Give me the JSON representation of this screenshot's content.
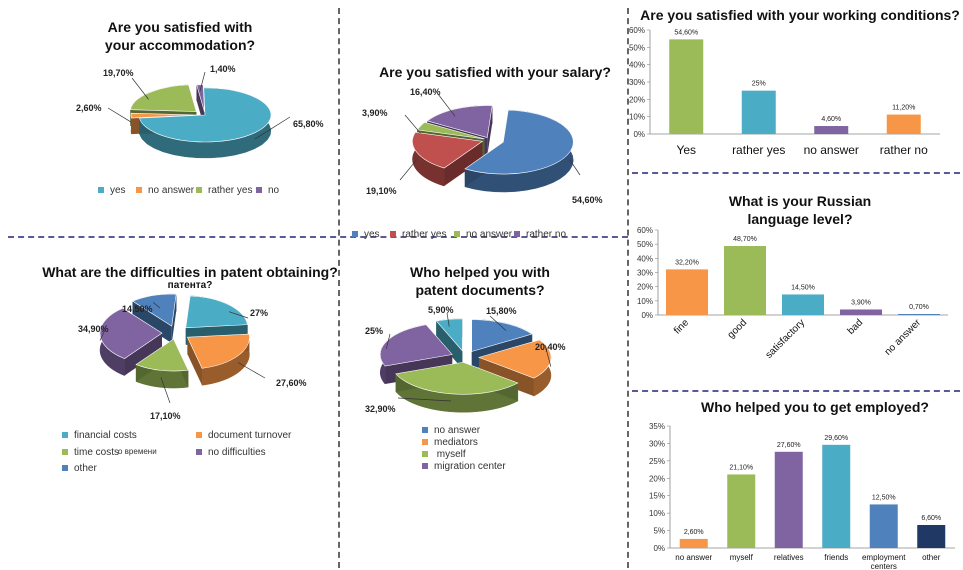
{
  "chart_data": [
    {
      "id": "accommodation",
      "type": "pie",
      "title": "Are you satisfied with your accommodation?",
      "slices": [
        {
          "name": "yes",
          "value": 65.8,
          "label": "65,80%",
          "color": "#4bacc6"
        },
        {
          "name": "no answer",
          "value": 2.6,
          "label": "2,60%",
          "color": "#f79646"
        },
        {
          "name": "rather yes",
          "value": 19.7,
          "label": "19,70%",
          "color": "#9bbb59"
        },
        {
          "name": "no",
          "value": 1.4,
          "label": "1,40%",
          "color": "#8064a2"
        }
      ],
      "legend": "bottom"
    },
    {
      "id": "salary",
      "type": "pie",
      "title": "Are you satisfied with your salary?",
      "slices": [
        {
          "name": "yes",
          "value": 54.6,
          "label": "54,60%",
          "color": "#4f81bd"
        },
        {
          "name": "rather yes",
          "value": 19.1,
          "label": "19,10%",
          "color": "#c0504d"
        },
        {
          "name": "no answer",
          "value": 3.9,
          "label": "3,90%",
          "color": "#9bbb59"
        },
        {
          "name": "rather no",
          "value": 16.4,
          "label": "16,40%",
          "color": "#8064a2"
        }
      ],
      "legend": "bottom"
    },
    {
      "id": "working_conditions",
      "type": "bar",
      "title": "Are you satisfied with your working conditions?",
      "categories": [
        "Yes",
        "rather yes",
        "no answer",
        "rather no"
      ],
      "values": [
        54.6,
        25,
        4.6,
        11.2
      ],
      "value_labels": [
        "54,60%",
        "25%",
        "4,60%",
        "11,20%"
      ],
      "colors": [
        "#9bbb59",
        "#4bacc6",
        "#8064a2",
        "#f79646"
      ],
      "yticks": [
        "0%",
        "10%",
        "20%",
        "30%",
        "40%",
        "50%",
        "60%"
      ],
      "ylim": [
        0,
        60
      ]
    },
    {
      "id": "patent_difficulties",
      "type": "pie",
      "title": "What are the difficulties in patent obtaining?",
      "subtitle": "патента?",
      "slices": [
        {
          "name": "financial costs",
          "value": 27,
          "label": "27%",
          "color": "#4bacc6"
        },
        {
          "name": "document turnover",
          "value": 27.6,
          "label": "27,60%",
          "color": "#f79646"
        },
        {
          "name": "time costs",
          "value": 17.1,
          "label": "17,10%",
          "color": "#9bbb59"
        },
        {
          "name": "no difficulties",
          "value": 34.9,
          "label": "34,90%",
          "color": "#8064a2"
        },
        {
          "name": "other",
          "value": 14.5,
          "label": "14,50%",
          "color": "#4f81bd"
        }
      ],
      "legend_extra": "о времени",
      "legend": "bottom"
    },
    {
      "id": "patent_help",
      "type": "pie",
      "title": "Who helped you with patent documents?",
      "slices": [
        {
          "name": "no answer",
          "value": 15.8,
          "label": "15,80%",
          "color": "#4f81bd"
        },
        {
          "name": "mediators",
          "value": 20.4,
          "label": "20,40%",
          "color": "#f79646"
        },
        {
          "name": "myself",
          "value": 32.9,
          "label": "32,90%",
          "color": "#9bbb59"
        },
        {
          "name": "migration center",
          "value": 25,
          "label": "25%",
          "color": "#8064a2"
        },
        {
          "name": "",
          "value": 5.9,
          "label": "5,90%",
          "color": "#4bacc6"
        }
      ],
      "legend": "bottom"
    },
    {
      "id": "russian_level",
      "type": "bar",
      "title": "What is your Russian language level?",
      "categories": [
        "fine",
        "good",
        "satisfactory",
        "bad",
        "no answer"
      ],
      "values": [
        32.2,
        48.7,
        14.5,
        3.9,
        0.7
      ],
      "value_labels": [
        "32,20%",
        "48,70%",
        "14,50%",
        "3,90%",
        "0,70%"
      ],
      "colors": [
        "#f79646",
        "#9bbb59",
        "#4bacc6",
        "#8064a2",
        "#4f81bd"
      ],
      "yticks": [
        "0%",
        "10%",
        "20%",
        "30%",
        "40%",
        "50%",
        "60%"
      ],
      "ylim": [
        0,
        60
      ]
    },
    {
      "id": "employment_help",
      "type": "bar",
      "title": "Who helped you to get employed?",
      "categories": [
        "no answer",
        "myself",
        "relatives",
        "friends",
        "employment centers",
        "other"
      ],
      "category_labels": [
        [
          "no answer"
        ],
        [
          "myself"
        ],
        [
          "relatives"
        ],
        [
          "friends"
        ],
        [
          "employment",
          "centers"
        ],
        [
          "other"
        ]
      ],
      "values": [
        2.6,
        21.1,
        27.6,
        29.6,
        12.5,
        6.6
      ],
      "value_labels": [
        "2,60%",
        "21,10%",
        "27,60%",
        "29,60%",
        "12,50%",
        "6,60%"
      ],
      "colors": [
        "#f79646",
        "#9bbb59",
        "#8064a2",
        "#4bacc6",
        "#4f81bd",
        "#1f3864"
      ],
      "yticks": [
        "0%",
        "5%",
        "10%",
        "15%",
        "20%",
        "25%",
        "30%",
        "35%"
      ],
      "ylim": [
        0,
        35
      ]
    }
  ],
  "titles": {
    "accommodation_1": "Are you satisfied with",
    "accommodation_2": "your accommodation?",
    "salary": "Are you satisfied with your salary?",
    "working": "Are you satisfied with your working conditions?",
    "patent_diff": "What are the difficulties in patent obtaining?",
    "patent_diff_sub": "патента?",
    "patent_help_1": "Who helped you with",
    "patent_help_2": "patent documents?",
    "russian_1": "What is your Russian",
    "russian_2": "language level?",
    "employed": "Who helped you to get employed?"
  }
}
